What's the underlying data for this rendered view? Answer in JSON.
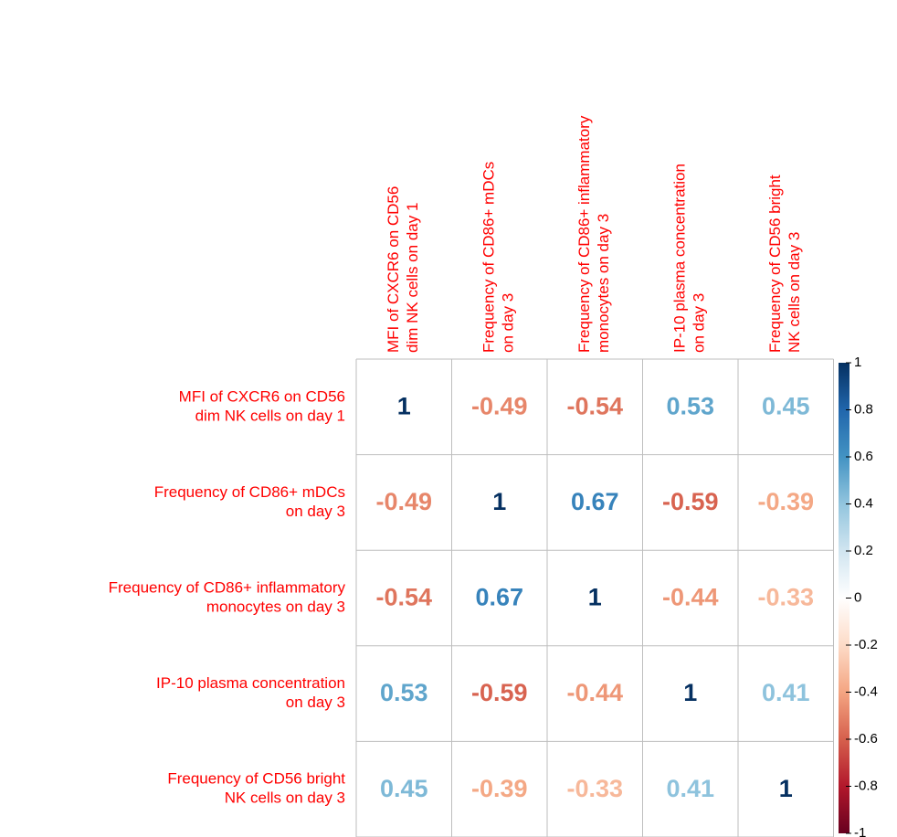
{
  "chart_data": {
    "type": "correlation",
    "labels": [
      [
        "MFI of CXCR6 on CD56",
        "dim NK cells on day 1"
      ],
      [
        "Frequency of CD86+ mDCs",
        "on day 3"
      ],
      [
        "Frequency of CD86+ inflammatory",
        "monocytes on day 3"
      ],
      [
        "IP-10 plasma concentration",
        "on day 3"
      ],
      [
        "Frequency of CD56 bright",
        "NK cells on day 3"
      ]
    ],
    "matrix": [
      [
        1,
        -0.49,
        -0.54,
        0.53,
        0.45
      ],
      [
        -0.49,
        1,
        0.67,
        -0.59,
        -0.39
      ],
      [
        -0.54,
        0.67,
        1,
        -0.44,
        -0.33
      ],
      [
        0.53,
        -0.59,
        -0.44,
        1,
        0.41
      ],
      [
        0.45,
        -0.39,
        -0.33,
        0.41,
        1
      ]
    ],
    "clim": [
      -1,
      1
    ],
    "cticks": [
      1,
      0.8,
      0.6,
      0.4,
      0.2,
      0,
      -0.2,
      -0.4,
      -0.6,
      -0.8,
      -1
    ],
    "colorscale": [
      "#67001F",
      "#B2182B",
      "#D6604D",
      "#F4A582",
      "#FDDBC7",
      "#FFFFFF",
      "#D1E5F0",
      "#92C5DE",
      "#4393C3",
      "#2166AC",
      "#053061"
    ],
    "label_color": "#ff0000"
  }
}
